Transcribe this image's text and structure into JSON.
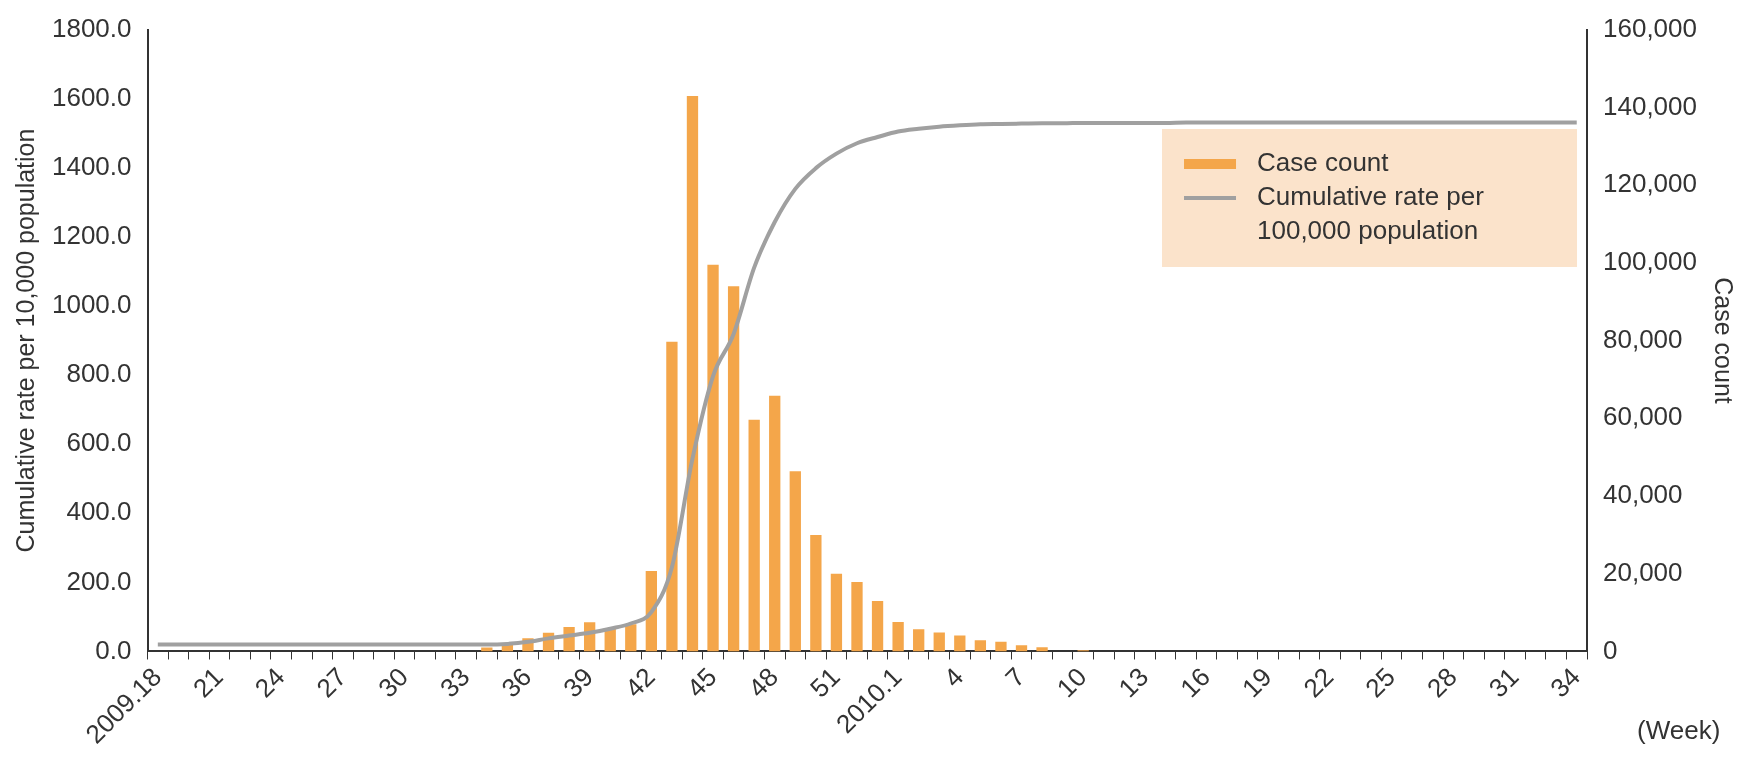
{
  "chart_data": {
    "type": "bar",
    "ylabel": "Cumulative rate per 10,000 population",
    "y2label": "Case count",
    "annotations": [
      "(Week)"
    ],
    "categories": [
      "2009.18",
      null,
      null,
      "21",
      null,
      null,
      "24",
      null,
      null,
      "27",
      null,
      null,
      "30",
      null,
      null,
      "33",
      null,
      null,
      "36",
      null,
      null,
      "39",
      null,
      null,
      "42",
      null,
      null,
      "45",
      null,
      null,
      "48",
      null,
      null,
      "51",
      null,
      null,
      "2010.1",
      null,
      null,
      "4",
      null,
      null,
      "7",
      null,
      null,
      "10",
      null,
      null,
      "13",
      null,
      null,
      "16",
      null,
      null,
      "19",
      null,
      null,
      "22",
      null,
      null,
      "25",
      null,
      null,
      "28",
      null,
      null,
      "31",
      null,
      null,
      "34"
    ],
    "series": [
      {
        "name": "Case count",
        "axis": "y2",
        "color": "#f4a64a",
        "values": [
          0,
          0,
          0,
          0,
          0,
          0,
          0,
          0,
          0,
          0,
          0,
          0,
          0,
          0,
          0,
          null,
          1000,
          2000,
          3400,
          4800,
          6300,
          7500,
          5800,
          7000,
          20700,
          79700,
          142900,
          99500,
          94000,
          59600,
          65800,
          46400,
          30000,
          20000,
          17900,
          13000,
          7600,
          5700,
          4900,
          4100,
          2900,
          2500,
          1600,
          1100,
          null,
          300,
          null,
          null,
          0,
          0,
          0,
          0,
          0,
          0,
          0,
          0,
          0,
          0,
          0,
          0,
          0,
          0,
          0,
          0,
          0,
          0,
          0,
          0,
          0,
          0
        ]
      },
      {
        "name": "Cumulative rate per 100,000 population",
        "type": "line",
        "axis": "y",
        "color": "#a0a0a0",
        "values": [
          20,
          20,
          20,
          20,
          20,
          20,
          20,
          20,
          20,
          20,
          20,
          20,
          20,
          20,
          20,
          20,
          20,
          22,
          28,
          38,
          46,
          54,
          66,
          81,
          114,
          244,
          558,
          797,
          919,
          1111,
          1243,
          1339,
          1399,
          1441,
          1471,
          1489,
          1505,
          1513,
          1519,
          1523,
          1526,
          1527,
          1528,
          1529,
          1529,
          1530,
          1530,
          1530,
          1530,
          1530,
          1531,
          1531,
          1531,
          1531,
          1531,
          1531,
          1531,
          1531,
          1531,
          1531,
          1531,
          1531,
          1531,
          1531,
          1531,
          1531,
          1531,
          1531,
          1531,
          1531
        ]
      }
    ],
    "ylim": [
      0,
      1800
    ],
    "yticks": [
      {
        "value": 0,
        "label": "0.0"
      },
      {
        "value": 200,
        "label": "200.0"
      },
      {
        "value": 400,
        "label": "400.0"
      },
      {
        "value": 600,
        "label": "600.0"
      },
      {
        "value": 800,
        "label": "800.0"
      },
      {
        "value": 1000,
        "label": "1000.0"
      },
      {
        "value": 1200,
        "label": "1200.0"
      },
      {
        "value": 1400,
        "label": "1400.0"
      },
      {
        "value": 1600,
        "label": "1600.0"
      },
      {
        "value": 1800,
        "label": "1800.0"
      }
    ],
    "y2lim": [
      0,
      160000
    ],
    "y2ticks": [
      {
        "value": 0,
        "label": "0"
      },
      {
        "value": 20000,
        "label": "20,000"
      },
      {
        "value": 40000,
        "label": "40,000"
      },
      {
        "value": 60000,
        "label": "60,000"
      },
      {
        "value": 80000,
        "label": "80,000"
      },
      {
        "value": 100000,
        "label": "100,000"
      },
      {
        "value": 120000,
        "label": "120,000"
      },
      {
        "value": 140000,
        "label": "140,000"
      },
      {
        "value": 160000,
        "label": "160,000"
      }
    ],
    "legend": "right",
    "grid": false
  }
}
